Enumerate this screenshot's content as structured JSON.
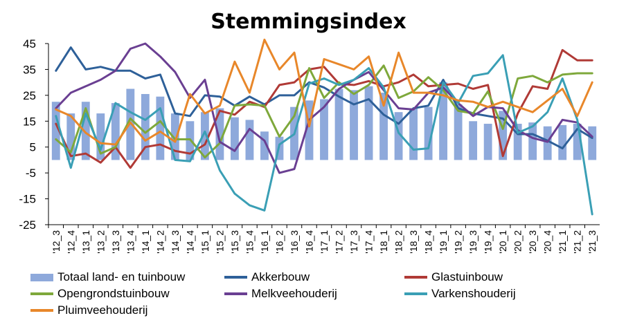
{
  "chart_data": {
    "type": "bar+line",
    "title": "Stemmingsindex",
    "xlabel": "",
    "ylabel": "",
    "ylim": [
      -25,
      45
    ],
    "yticks": [
      -25,
      -15,
      -5,
      5,
      15,
      25,
      35,
      45
    ],
    "grid": false,
    "legend_position": "bottom",
    "categories": [
      "'12_3",
      "'12_4",
      "'13_1",
      "'13_2",
      "'13_3",
      "'13_4",
      "'14_1",
      "'14_2",
      "'14_3",
      "'14_4",
      "'15_1",
      "'15_2",
      "'15_3",
      "'15_4",
      "'16_1",
      "'16_2",
      "'16_3",
      "'16_4",
      "'17_1",
      "'17_2",
      "'17_3",
      "'17_4",
      "'18_1",
      "'18_2",
      "'18_3",
      "'18_4",
      "'19_1",
      "'19_2",
      "'19_3",
      "'19_4",
      "'20_1",
      "'20_2",
      "'20_3",
      "'20_4",
      "'21_1",
      "'21_2",
      "'21_3"
    ],
    "series": [
      {
        "name": "Totaal land- en tuinbouw",
        "kind": "bar",
        "color": "#8EA9DB",
        "values": [
          22.5,
          18,
          22.5,
          18,
          22,
          27.5,
          25.5,
          24.5,
          18,
          15,
          18.5,
          20,
          16.5,
          15.5,
          11,
          9,
          20.5,
          23,
          23.5,
          27.5,
          27,
          28.5,
          26,
          18.5,
          20,
          20.5,
          30,
          21.5,
          15,
          14,
          19,
          14,
          14.5,
          13,
          13.5,
          14,
          13
        ]
      },
      {
        "name": "Akkerbouw",
        "kind": "line",
        "color": "#2E6099",
        "values": [
          34.5,
          43.5,
          35,
          36,
          34.5,
          34.5,
          31.5,
          33,
          18,
          17,
          25,
          24.5,
          21,
          24.5,
          21.5,
          25,
          25,
          30,
          28,
          24.5,
          21.5,
          23.5,
          17.5,
          14,
          20,
          21,
          31,
          20,
          18,
          17,
          16,
          10,
          10,
          7.5,
          4.5,
          12,
          8.5
        ]
      },
      {
        "name": "Glastuinbouw",
        "kind": "line",
        "color": "#B03A36",
        "values": [
          14,
          1.5,
          2.5,
          -1,
          5,
          -3,
          5,
          6,
          3.5,
          2.5,
          6,
          19,
          17.5,
          22.5,
          20.5,
          29,
          30,
          35,
          36,
          29.5,
          29,
          30.5,
          28.5,
          30,
          33,
          28.5,
          29,
          29.5,
          27.5,
          29,
          1.5,
          18,
          28.5,
          27.5,
          42.5,
          38.5,
          38.5
        ]
      },
      {
        "name": "Opengrondstuinbouw",
        "kind": "line",
        "color": "#7EA83B",
        "values": [
          8,
          3,
          20,
          2.5,
          5,
          16,
          10.5,
          15,
          8,
          8,
          1,
          6.5,
          21,
          21.5,
          21,
          9,
          17,
          35.5,
          24,
          30,
          25.5,
          29,
          36.5,
          24,
          26.5,
          32,
          27,
          19,
          18,
          26.5,
          12,
          31.5,
          32.5,
          30,
          33,
          33.5,
          33.5
        ]
      },
      {
        "name": "Melkveehouderij",
        "kind": "line",
        "color": "#6A3F92",
        "values": [
          20,
          26,
          28.5,
          31,
          34.5,
          43,
          45,
          40,
          34,
          24,
          31,
          7,
          3.5,
          12,
          7.5,
          -5,
          -3.5,
          15.5,
          20.5,
          27.5,
          31,
          34,
          27,
          20,
          19.5,
          26,
          28,
          22,
          17,
          20.5,
          20,
          11.5,
          8.5,
          7,
          15.5,
          14.5,
          9
        ]
      },
      {
        "name": "Varkenshouderij",
        "kind": "line",
        "color": "#3A9FB5",
        "values": [
          17,
          -3,
          18,
          4,
          22,
          18.5,
          15.5,
          20,
          0,
          -0.5,
          11,
          -4,
          -13,
          -17.5,
          -19.5,
          6,
          10,
          29.5,
          31.5,
          29,
          31,
          35.5,
          28,
          10.5,
          4,
          4.5,
          30,
          22,
          32.5,
          33.5,
          40.5,
          10.5,
          13,
          18.5,
          31.5,
          15.5,
          -21
        ]
      },
      {
        "name": "Pluimveehouderij",
        "kind": "line",
        "color": "#E8872A",
        "values": [
          19.5,
          17,
          10.5,
          6.5,
          6,
          14.5,
          7.5,
          11,
          7,
          25.5,
          18,
          21,
          38,
          26,
          46.5,
          35,
          41.5,
          13,
          39,
          37,
          35,
          40,
          21,
          41.5,
          26,
          26,
          25,
          23,
          22.5,
          20.5,
          22.5,
          20.5,
          18.5,
          23,
          27.5,
          17,
          30
        ]
      }
    ]
  }
}
